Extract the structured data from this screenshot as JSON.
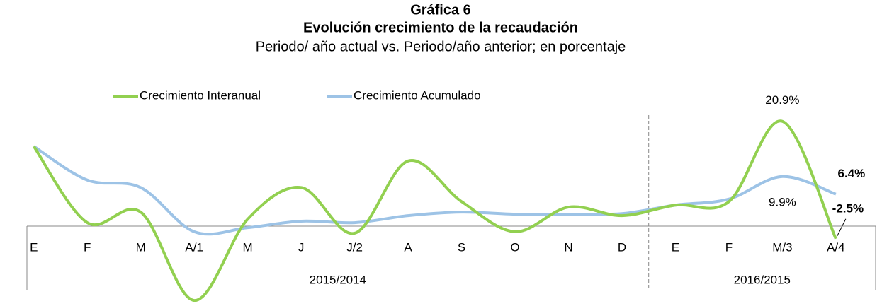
{
  "chart_data": {
    "type": "line",
    "title": "Gráfica 6",
    "subtitle": "Evolución crecimiento de la recaudación",
    "description": "Periodo/ año actual vs. Periodo/año anterior; en porcentaje",
    "categories": [
      "E",
      "F",
      "M",
      "A/1",
      "M",
      "J",
      "J/2",
      "A",
      "S",
      "O",
      "N",
      "D",
      "E",
      "F",
      "M/3",
      "A/4"
    ],
    "groups": [
      {
        "name": "2015/2014",
        "span": 12
      },
      {
        "name": "2016/2015",
        "span": 4
      }
    ],
    "series": [
      {
        "name": "Crecimiento Interanual",
        "color": "#92d050",
        "values": [
          15.9,
          0.7,
          2.8,
          -14.8,
          1.4,
          7.7,
          -1.4,
          13.0,
          4.9,
          -1.1,
          3.8,
          2.1,
          4.2,
          4.9,
          20.9,
          -2.5
        ],
        "value_labels": [
          null,
          null,
          null,
          null,
          null,
          null,
          null,
          null,
          null,
          null,
          null,
          null,
          null,
          null,
          "20.9%",
          "-2.5%"
        ]
      },
      {
        "name": "Crecimiento Acumulado",
        "color": "#9dc3e6",
        "values": [
          15.9,
          9.2,
          7.7,
          -1.1,
          -0.3,
          1.0,
          0.7,
          2.1,
          2.8,
          2.4,
          2.4,
          2.5,
          4.2,
          5.4,
          9.9,
          6.4
        ],
        "value_labels": [
          null,
          null,
          null,
          null,
          null,
          null,
          null,
          null,
          null,
          null,
          null,
          null,
          null,
          null,
          "9.9%",
          "6.4%"
        ]
      }
    ],
    "ylim": [
      -15,
      21
    ],
    "smooth": true
  }
}
